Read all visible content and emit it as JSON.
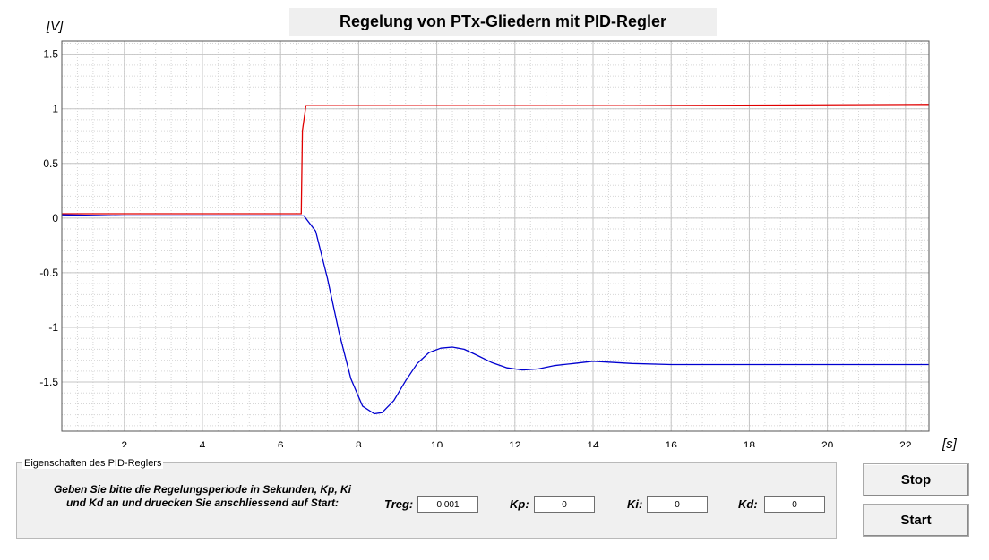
{
  "window": {
    "title": "Regelung von PTx-Gliedern mit PID-Regler"
  },
  "plot": {
    "y_unit": "[V]",
    "x_unit": "[s]"
  },
  "chart_data": {
    "type": "line",
    "title": "Regelung von PTx-Gliedern mit PID-Regler",
    "xlabel": "[s]",
    "ylabel": "[V]",
    "xlim": [
      0.4,
      22.6
    ],
    "ylim": [
      -1.95,
      1.62
    ],
    "x_ticks": [
      2,
      4,
      6,
      8,
      10,
      12,
      14,
      16,
      18,
      20,
      22
    ],
    "y_ticks": [
      1.5,
      1,
      0.5,
      0,
      -0.5,
      -1,
      -1.5
    ],
    "grid": true,
    "series": [
      {
        "color": "#e00000",
        "x": [
          0.4,
          3,
          6.53,
          6.56,
          6.65,
          10,
          15,
          22.6
        ],
        "y": [
          0.04,
          0.04,
          0.04,
          0.8,
          1.03,
          1.03,
          1.03,
          1.04
        ]
      },
      {
        "color": "#0000d0",
        "x": [
          0.4,
          2,
          4,
          6,
          6.6,
          6.9,
          7.2,
          7.5,
          7.8,
          8.1,
          8.4,
          8.6,
          8.9,
          9.2,
          9.5,
          9.8,
          10.1,
          10.4,
          10.7,
          11.0,
          11.4,
          11.8,
          12.2,
          12.6,
          13.0,
          13.5,
          14.0,
          15.0,
          16.0,
          18.0,
          20.0,
          22.6
        ],
        "y": [
          0.03,
          0.02,
          0.02,
          0.02,
          0.02,
          -0.12,
          -0.55,
          -1.05,
          -1.47,
          -1.72,
          -1.79,
          -1.78,
          -1.67,
          -1.49,
          -1.33,
          -1.23,
          -1.19,
          -1.18,
          -1.2,
          -1.25,
          -1.32,
          -1.37,
          -1.39,
          -1.38,
          -1.35,
          -1.33,
          -1.31,
          -1.33,
          -1.34,
          -1.34,
          -1.34,
          -1.34
        ]
      }
    ]
  },
  "controls": {
    "group_title": "Eigenschaften des PID-Reglers",
    "instructions": "Geben Sie bitte die Regelungsperiode in Sekunden, Kp, Ki und Kd an und druecken Sie anschliessend auf Start:",
    "treg_label": "Treg:",
    "treg_value": "0.001",
    "kp_label": "Kp:",
    "kp_value": "0",
    "ki_label": "Ki:",
    "ki_value": "0",
    "kd_label": "Kd:",
    "kd_value": "0"
  },
  "buttons": {
    "stop_label": "Stop",
    "start_label": "Start"
  }
}
